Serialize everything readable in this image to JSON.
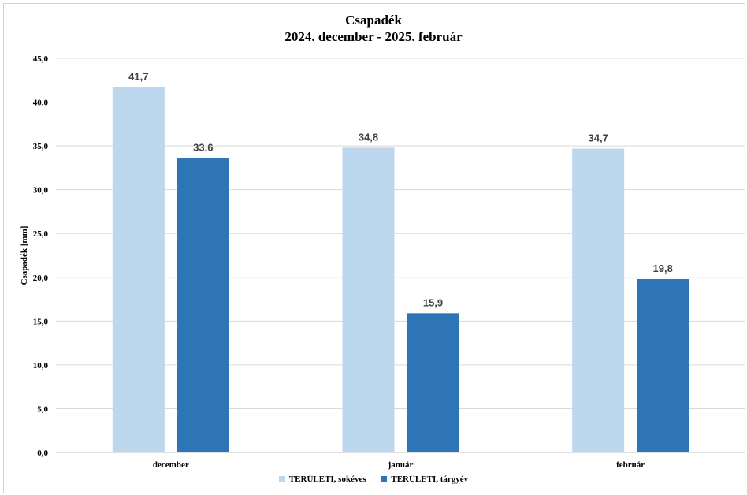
{
  "chart_data": {
    "type": "bar",
    "title": "Csapadék",
    "subtitle": "2024. december - 2025. február",
    "ylabel": "Csapadék [mm]",
    "xlabel": "",
    "categories": [
      "december",
      "január",
      "február"
    ],
    "series": [
      {
        "name": "TERÜLETI, sokéves",
        "color": "#bdd7ee",
        "values": [
          41.7,
          34.8,
          34.7
        ],
        "labels": [
          "41,7",
          "34,8",
          "34,7"
        ]
      },
      {
        "name": "TERÜLETI, tárgyév",
        "color": "#2e75b6",
        "values": [
          33.6,
          15.9,
          19.8
        ],
        "labels": [
          "33,6",
          "15,9",
          "19,8"
        ]
      }
    ],
    "ylim": [
      0,
      45
    ],
    "yticks": [
      "0,0",
      "5,0",
      "10,0",
      "15,0",
      "20,0",
      "25,0",
      "30,0",
      "35,0",
      "40,0",
      "45,0"
    ],
    "grid": true,
    "legend_position": "bottom"
  }
}
